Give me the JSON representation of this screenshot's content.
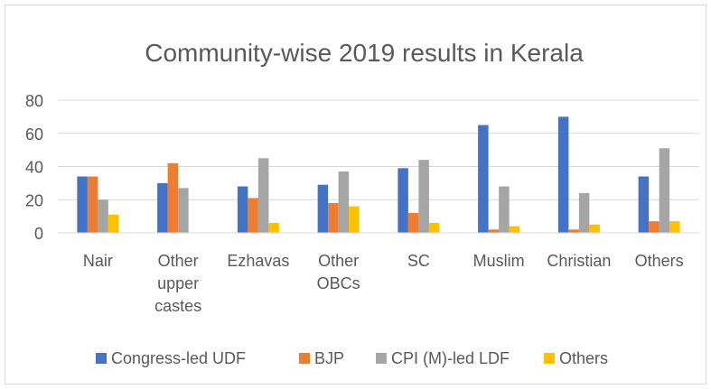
{
  "chart_data": {
    "type": "bar",
    "title": "Community-wise 2019 results in Kerala",
    "xlabel": "",
    "ylabel": "",
    "ylim": [
      0,
      80
    ],
    "yticks": [
      0,
      20,
      40,
      60,
      80
    ],
    "grid": true,
    "legend_position": "bottom",
    "categories": [
      [
        "Nair"
      ],
      [
        "Other",
        "upper",
        "castes"
      ],
      [
        "Ezhavas"
      ],
      [
        "Other",
        "OBCs"
      ],
      [
        "SC"
      ],
      [
        "Muslim"
      ],
      [
        "Christian"
      ],
      [
        "Others"
      ]
    ],
    "series": [
      {
        "name": "Congress-led UDF",
        "color": "#4472c4",
        "values": [
          34,
          30,
          28,
          29,
          39,
          65,
          70,
          34
        ]
      },
      {
        "name": "BJP",
        "color": "#ed7d31",
        "values": [
          34,
          42,
          21,
          18,
          12,
          2,
          2,
          7
        ]
      },
      {
        "name": "CPI (M)-led LDF",
        "color": "#a5a5a5",
        "values": [
          20,
          27,
          45,
          37,
          44,
          28,
          24,
          51
        ]
      },
      {
        "name": "Others",
        "color": "#ffc000",
        "values": [
          11,
          0,
          6,
          16,
          6,
          4,
          5,
          7
        ]
      }
    ]
  }
}
